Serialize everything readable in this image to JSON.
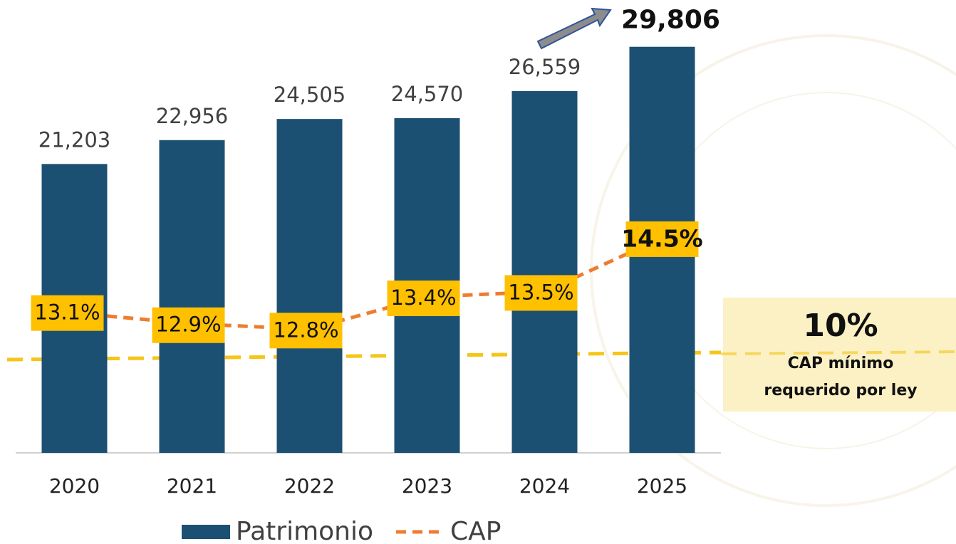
{
  "chart_data": {
    "type": "bar_line",
    "categories": [
      "2020",
      "2021",
      "2022",
      "2023",
      "2024",
      "2025"
    ],
    "series": [
      {
        "name": "Patrimonio",
        "type": "bar",
        "color": "#1b5073",
        "values": [
          21203,
          22956,
          24505,
          24570,
          26559,
          29806
        ],
        "value_labels": [
          "21,203",
          "22,956",
          "24,505",
          "24,570",
          "26,559",
          "29,806"
        ]
      },
      {
        "name": "CAP",
        "type": "line",
        "axis": "y2",
        "color": "#ed7d31",
        "dashed": true,
        "values": [
          13.1,
          12.9,
          12.8,
          13.4,
          13.5,
          14.5
        ],
        "value_labels": [
          "13.1%",
          "12.9%",
          "12.8%",
          "13.4%",
          "13.5%",
          "14.5%"
        ]
      }
    ],
    "ylim": [
      0,
      30000
    ],
    "y2lim": [
      10.5,
      18.1
    ],
    "grid": false,
    "legend": "bottom",
    "annotation": {
      "title": "10%",
      "text": [
        "CAP mínimo",
        "requerido por ley"
      ]
    }
  }
}
